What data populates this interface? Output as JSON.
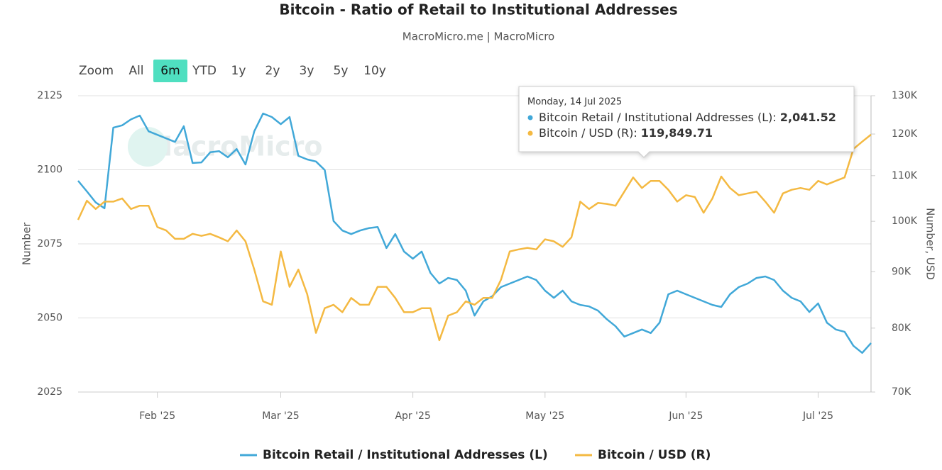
{
  "chart_data": {
    "type": "line",
    "title": "Bitcoin - Ratio of Retail to Institutional Addresses",
    "subtitle": "MacroMicro.me | MacroMicro",
    "watermark": "MacroMicro",
    "range_selector": {
      "label": "Zoom",
      "buttons": [
        "All",
        "6m",
        "YTD",
        "1y",
        "2y",
        "3y",
        "5y",
        "10y"
      ],
      "active": 1
    },
    "ylabel": "Number",
    "y2label": "Number, USD",
    "ylim": [
      2025,
      2125
    ],
    "yticks": [
      2025,
      2050,
      2075,
      2100,
      2125
    ],
    "y2lim": [
      70000,
      130000
    ],
    "y2log": true,
    "y2ticks": [
      {
        "value": 70000,
        "label": "70K"
      },
      {
        "value": 80000,
        "label": "80K"
      },
      {
        "value": 90000,
        "label": "90K"
      },
      {
        "value": 100000,
        "label": "100K"
      },
      {
        "value": 110000,
        "label": "110K"
      },
      {
        "value": 120000,
        "label": "120K"
      },
      {
        "value": 130000,
        "label": "130K"
      }
    ],
    "grid": true,
    "legend": "bottom",
    "categories": [
      null,
      null,
      null,
      null,
      null,
      null,
      null,
      null,
      null,
      "Feb '25",
      null,
      null,
      null,
      null,
      null,
      null,
      null,
      null,
      null,
      null,
      null,
      null,
      null,
      "Mar '25",
      null,
      null,
      null,
      null,
      null,
      null,
      null,
      null,
      null,
      null,
      null,
      null,
      null,
      null,
      "Apr '25",
      null,
      null,
      null,
      null,
      null,
      null,
      null,
      null,
      null,
      null,
      null,
      null,
      null,
      null,
      "May '25",
      null,
      null,
      null,
      null,
      null,
      null,
      null,
      null,
      null,
      null,
      null,
      null,
      null,
      null,
      null,
      "Jun '25",
      null,
      null,
      null,
      null,
      null,
      null,
      null,
      null,
      null,
      null,
      null,
      null,
      null,
      null,
      "Jul '25",
      null,
      null,
      null,
      null,
      null,
      null
    ],
    "series": [
      {
        "name": "Bitcoin Retail / Institutional Addresses (L)",
        "color": "#41a8d8",
        "axis": "y",
        "values": [
          2096.3,
          2092.7,
          2089,
          2087,
          2114.2,
          2115,
          2117,
          2118.3,
          2113,
          2111.8,
          2110.6,
          2109.4,
          2114.7,
          2102.3,
          2102.5,
          2105.9,
          2106.3,
          2104.2,
          2107,
          2101.8,
          2113,
          2119,
          2117.8,
          2115.4,
          2117.8,
          2104.7,
          2103.5,
          2102.8,
          2099.9,
          2082.7,
          2079.5,
          2078.3,
          2079.5,
          2080.3,
          2080.7,
          2073.6,
          2078.3,
          2072.4,
          2070,
          2072.4,
          2065.2,
          2061.6,
          2063.5,
          2062.8,
          2059.2,
          2050.8,
          2055.6,
          2057.3,
          2060.4,
          2061.6,
          2062.8,
          2064,
          2062.8,
          2059.2,
          2056.8,
          2059.2,
          2055.6,
          2054.4,
          2053.9,
          2052.5,
          2049.6,
          2047.2,
          2043.7,
          2044.9,
          2046.1,
          2044.9,
          2048.4,
          2058,
          2059.2,
          2058,
          2056.8,
          2055.6,
          2054.4,
          2053.7,
          2058,
          2060.4,
          2061.6,
          2063.5,
          2064,
          2062.8,
          2059.2,
          2056.8,
          2055.6,
          2052,
          2054.9,
          2048.4,
          2046.1,
          2045.3,
          2040.6,
          2038.2,
          2041.52
        ]
      },
      {
        "name": "Bitcoin / USD (R)",
        "color": "#f4b942",
        "axis": "y2",
        "values": [
          100300,
          104400,
          102600,
          104200,
          104200,
          104900,
          102600,
          103300,
          103300,
          98800,
          98100,
          96400,
          96400,
          97400,
          97000,
          97400,
          96700,
          95900,
          98100,
          95900,
          90400,
          84600,
          84000,
          93900,
          87200,
          90400,
          85900,
          79200,
          83400,
          84000,
          82700,
          85200,
          84000,
          84000,
          87200,
          87200,
          85200,
          82700,
          82700,
          83400,
          83400,
          78000,
          82100,
          82700,
          84600,
          84000,
          85200,
          85200,
          88500,
          93900,
          94300,
          94600,
          94300,
          96300,
          95900,
          94800,
          96700,
          104200,
          102600,
          103900,
          103700,
          103300,
          106400,
          109600,
          107200,
          108800,
          108800,
          106800,
          104200,
          105600,
          105200,
          101800,
          104900,
          109800,
          107200,
          105600,
          106000,
          106400,
          104200,
          101800,
          106000,
          106800,
          107200,
          106800,
          108800,
          108000,
          108800,
          109600,
          116300,
          118100,
          119849.71
        ]
      }
    ],
    "tooltip": {
      "title": "Monday, 14 Jul 2025",
      "value_labels": [
        "2,041.52",
        "119,849.71"
      ]
    }
  }
}
